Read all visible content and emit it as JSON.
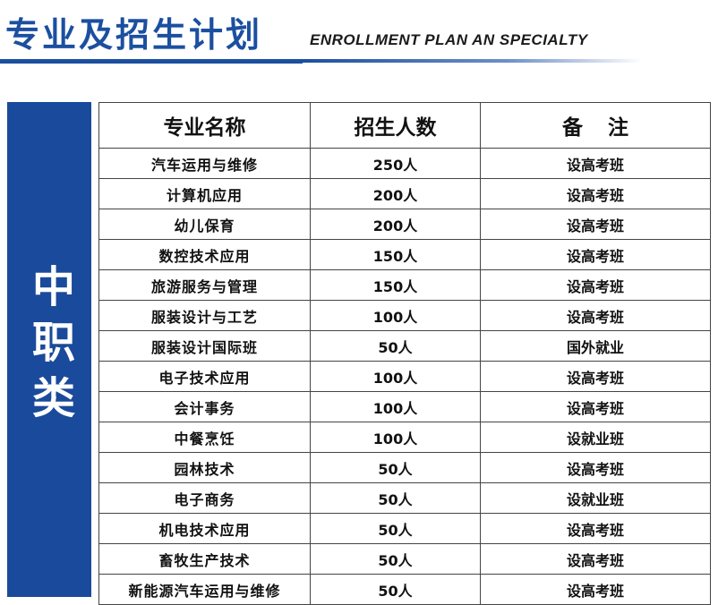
{
  "header": {
    "title_cn": "专业及招生计划",
    "title_en": "ENROLLMENT PLAN AN SPECIALTY"
  },
  "category": {
    "label": "中职类"
  },
  "table": {
    "headers": [
      "专业名称",
      "招生人数",
      "备注"
    ],
    "rows": [
      {
        "name": "汽车运用与维修",
        "count": "250人",
        "note": "设高考班"
      },
      {
        "name": "计算机应用",
        "count": "200人",
        "note": "设高考班"
      },
      {
        "name": "幼儿保育",
        "count": "200人",
        "note": "设高考班"
      },
      {
        "name": "数控技术应用",
        "count": "150人",
        "note": "设高考班"
      },
      {
        "name": "旅游服务与管理",
        "count": "150人",
        "note": "设高考班"
      },
      {
        "name": "服装设计与工艺",
        "count": "100人",
        "note": "设高考班"
      },
      {
        "name": "服装设计国际班",
        "count": "50人",
        "note": "国外就业"
      },
      {
        "name": "电子技术应用",
        "count": "100人",
        "note": "设高考班"
      },
      {
        "name": "会计事务",
        "count": "100人",
        "note": "设高考班"
      },
      {
        "name": "中餐烹饪",
        "count": "100人",
        "note": "设就业班"
      },
      {
        "name": "园林技术",
        "count": "50人",
        "note": "设高考班"
      },
      {
        "name": "电子商务",
        "count": "50人",
        "note": "设就业班"
      },
      {
        "name": "机电技术应用",
        "count": "50人",
        "note": "设高考班"
      },
      {
        "name": "畜牧生产技术",
        "count": "50人",
        "note": "设高考班"
      },
      {
        "name": "新能源汽车运用与维修",
        "count": "50人",
        "note": "设高考班"
      }
    ]
  },
  "colors": {
    "brand_blue": "#1b4fa0",
    "category_bg": "#1a4a9b",
    "border": "#444444"
  }
}
